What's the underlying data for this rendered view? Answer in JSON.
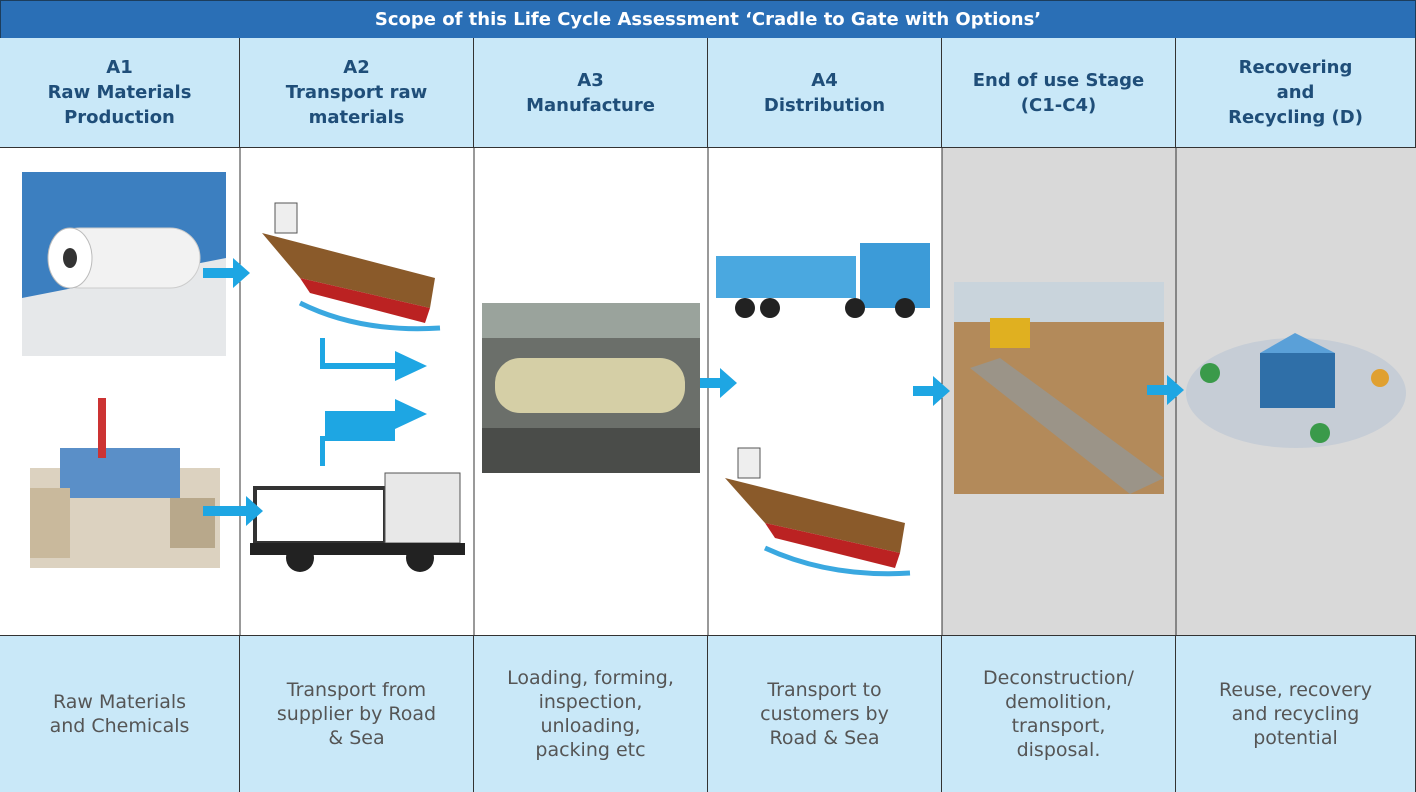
{
  "header": {
    "title": "Scope of this Life Cycle Assessment ‘Cradle to Gate with Options’"
  },
  "columns": [
    {
      "heading": [
        "A1",
        "Raw Materials",
        "Production"
      ],
      "description": [
        "Raw Materials",
        "and Chemicals"
      ]
    },
    {
      "heading": [
        "A2",
        "Transport raw",
        "materials"
      ],
      "description": [
        "Transport from",
        "supplier by Road",
        "& Sea"
      ]
    },
    {
      "heading": [
        "A3",
        "Manufacture"
      ],
      "description": [
        "Loading, forming,",
        "inspection,",
        "unloading,",
        "packing etc"
      ]
    },
    {
      "heading": [
        "A4",
        "Distribution"
      ],
      "description": [
        "Transport to",
        "customers by",
        "Road & Sea"
      ]
    },
    {
      "heading": [
        "End of use Stage",
        "(C1-C4)"
      ],
      "description": [
        "Deconstruction/",
        "demolition,",
        "transport,",
        "disposal."
      ]
    },
    {
      "heading": [
        "Recovering",
        "and",
        "Recycling (D)"
      ],
      "description": [
        "Reuse, recovery",
        "and recycling",
        "potential"
      ]
    }
  ]
}
